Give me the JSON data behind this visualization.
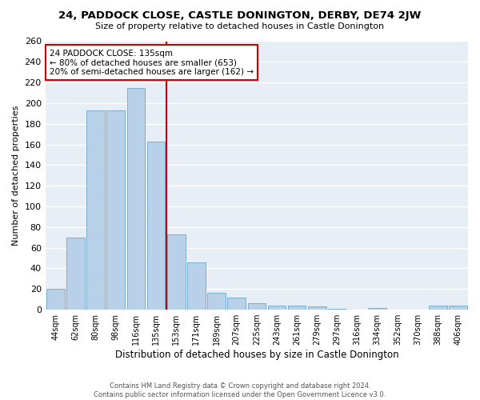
{
  "title": "24, PADDOCK CLOSE, CASTLE DONINGTON, DERBY, DE74 2JW",
  "subtitle": "Size of property relative to detached houses in Castle Donington",
  "xlabel": "Distribution of detached houses by size in Castle Donington",
  "ylabel": "Number of detached properties",
  "categories": [
    "44sqm",
    "62sqm",
    "80sqm",
    "98sqm",
    "116sqm",
    "135sqm",
    "153sqm",
    "171sqm",
    "189sqm",
    "207sqm",
    "225sqm",
    "243sqm",
    "261sqm",
    "279sqm",
    "297sqm",
    "316sqm",
    "334sqm",
    "352sqm",
    "370sqm",
    "388sqm",
    "406sqm"
  ],
  "values": [
    20,
    70,
    193,
    193,
    215,
    163,
    73,
    46,
    16,
    12,
    6,
    4,
    4,
    3,
    1,
    0,
    2,
    0,
    0,
    4,
    4
  ],
  "bar_color": "#b8d0e8",
  "bar_edge_color": "#7aaed0",
  "highlight_index": 5,
  "annotation_text": "24 PADDOCK CLOSE: 135sqm\n← 80% of detached houses are smaller (653)\n20% of semi-detached houses are larger (162) →",
  "annotation_box_color": "#ffffff",
  "annotation_box_edge": "#cc0000",
  "vline_color": "#cc0000",
  "ylim": [
    0,
    260
  ],
  "yticks": [
    0,
    20,
    40,
    60,
    80,
    100,
    120,
    140,
    160,
    180,
    200,
    220,
    240,
    260
  ],
  "background_color": "#e8eef5",
  "grid_color": "#ffffff",
  "footer_line1": "Contains HM Land Registry data © Crown copyright and database right 2024.",
  "footer_line2": "Contains public sector information licensed under the Open Government Licence v3.0."
}
